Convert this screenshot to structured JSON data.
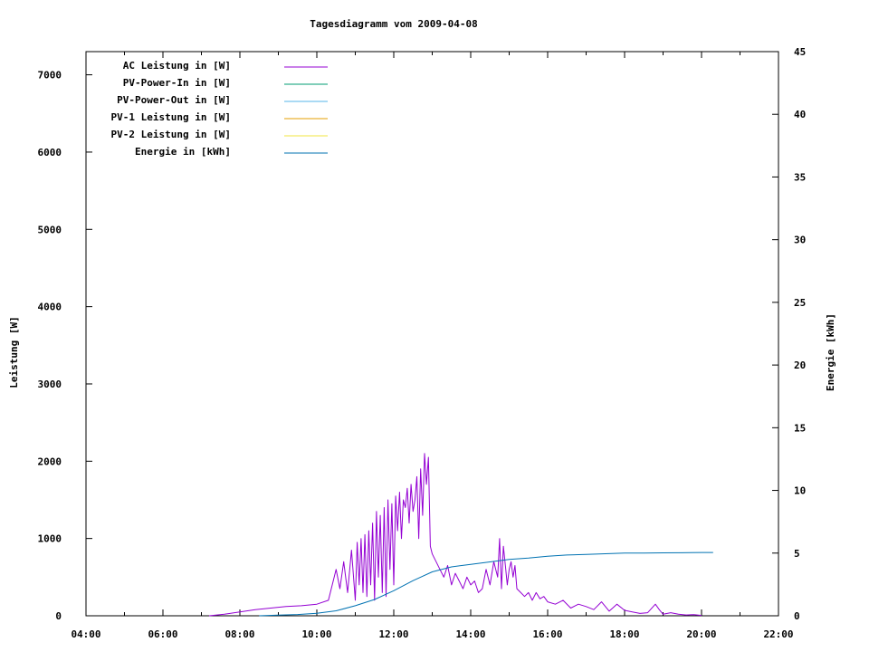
{
  "colors": {
    "ac": "#9400d3",
    "pv_in": "#009e73",
    "pv_out": "#56b4e9",
    "pv1": "#e69f00",
    "pv2": "#f0e442",
    "energy": "#0072b2"
  },
  "chart_data": {
    "type": "line",
    "title": "Tagesdiagramm vom 2009-04-08",
    "ylabel": "Leistung [W]",
    "y2label": "Energie [kWh]",
    "xlim": [
      4,
      22
    ],
    "ylim": [
      0,
      7300
    ],
    "y2lim": [
      0,
      45
    ],
    "x_tick_labels": [
      "04:00",
      "06:00",
      "08:00",
      "10:00",
      "12:00",
      "14:00",
      "16:00",
      "18:00",
      "20:00",
      "22:00"
    ],
    "x_tick_values": [
      4,
      6,
      8,
      10,
      12,
      14,
      16,
      18,
      20,
      22
    ],
    "y_tick_labels": [
      "0",
      "1000",
      "2000",
      "3000",
      "4000",
      "5000",
      "6000",
      "7000"
    ],
    "y_tick_values": [
      0,
      1000,
      2000,
      3000,
      4000,
      5000,
      6000,
      7000
    ],
    "y2_tick_labels": [
      "0",
      "5",
      "10",
      "15",
      "20",
      "25",
      "30",
      "35",
      "40",
      "45"
    ],
    "y2_tick_values": [
      0,
      5,
      10,
      15,
      20,
      25,
      30,
      35,
      40,
      45
    ],
    "legend_position": "top-left",
    "series": [
      {
        "name": "AC Leistung in [W]",
        "axis": "y",
        "color_key": "ac",
        "x": [
          7.2,
          7.6,
          8.0,
          8.4,
          8.8,
          9.2,
          9.6,
          10.0,
          10.3,
          10.5,
          10.6,
          10.7,
          10.8,
          10.9,
          11.0,
          11.05,
          11.1,
          11.15,
          11.2,
          11.25,
          11.3,
          11.35,
          11.4,
          11.45,
          11.5,
          11.55,
          11.6,
          11.65,
          11.7,
          11.75,
          11.8,
          11.85,
          11.9,
          11.95,
          12.0,
          12.05,
          12.1,
          12.15,
          12.2,
          12.25,
          12.3,
          12.35,
          12.4,
          12.45,
          12.5,
          12.55,
          12.6,
          12.65,
          12.7,
          12.75,
          12.8,
          12.85,
          12.9,
          12.95,
          13.0,
          13.1,
          13.2,
          13.3,
          13.4,
          13.5,
          13.6,
          13.7,
          13.8,
          13.9,
          14.0,
          14.1,
          14.2,
          14.3,
          14.4,
          14.5,
          14.6,
          14.7,
          14.75,
          14.8,
          14.85,
          14.9,
          14.95,
          15.0,
          15.05,
          15.1,
          15.15,
          15.2,
          15.3,
          15.4,
          15.5,
          15.6,
          15.7,
          15.8,
          15.9,
          16.0,
          16.2,
          16.4,
          16.6,
          16.8,
          17.0,
          17.2,
          17.4,
          17.6,
          17.8,
          18.0,
          18.2,
          18.4,
          18.6,
          18.8,
          18.9,
          19.0,
          19.2,
          19.4,
          19.6,
          19.8,
          20.0
        ],
        "values": [
          0,
          20,
          50,
          80,
          100,
          120,
          130,
          150,
          200,
          600,
          350,
          700,
          300,
          850,
          200,
          950,
          400,
          1000,
          300,
          1050,
          250,
          1100,
          400,
          1200,
          200,
          1350,
          500,
          1300,
          300,
          1400,
          250,
          1500,
          600,
          1450,
          400,
          1550,
          1100,
          1600,
          1000,
          1500,
          1400,
          1650,
          1200,
          1700,
          1350,
          1500,
          1800,
          1000,
          1900,
          1300,
          2100,
          1700,
          2050,
          900,
          800,
          700,
          600,
          500,
          650,
          400,
          550,
          450,
          350,
          500,
          400,
          450,
          300,
          350,
          600,
          400,
          700,
          500,
          1000,
          350,
          900,
          650,
          400,
          600,
          700,
          500,
          650,
          350,
          300,
          250,
          300,
          200,
          300,
          220,
          250,
          180,
          150,
          200,
          100,
          150,
          120,
          80,
          180,
          60,
          150,
          70,
          50,
          30,
          40,
          150,
          80,
          20,
          40,
          20,
          10,
          15,
          5
        ]
      },
      {
        "name": "PV-Power-In in [W]",
        "axis": "y",
        "color_key": "pv_in",
        "x": [],
        "values": []
      },
      {
        "name": "PV-Power-Out in [W]",
        "axis": "y",
        "color_key": "pv_out",
        "x": [],
        "values": []
      },
      {
        "name": "PV-1 Leistung in [W]",
        "axis": "y",
        "color_key": "pv1",
        "x": [],
        "values": []
      },
      {
        "name": "PV-2 Leistung in [W]",
        "axis": "y",
        "color_key": "pv2",
        "x": [],
        "values": []
      },
      {
        "name": "Energie in [kWh]",
        "axis": "y2",
        "color_key": "energy",
        "x": [
          8.5,
          9.0,
          9.5,
          10.0,
          10.5,
          11.0,
          11.5,
          12.0,
          12.5,
          13.0,
          13.5,
          14.0,
          14.5,
          15.0,
          15.5,
          16.0,
          16.5,
          17.0,
          17.5,
          18.0,
          18.5,
          19.0,
          19.5,
          20.0,
          20.3
        ],
        "values": [
          0.0,
          0.05,
          0.1,
          0.2,
          0.4,
          0.8,
          1.3,
          2.0,
          2.8,
          3.5,
          3.9,
          4.1,
          4.3,
          4.5,
          4.6,
          4.75,
          4.85,
          4.9,
          4.95,
          5.0,
          5.0,
          5.02,
          5.03,
          5.05,
          5.05
        ]
      }
    ]
  }
}
